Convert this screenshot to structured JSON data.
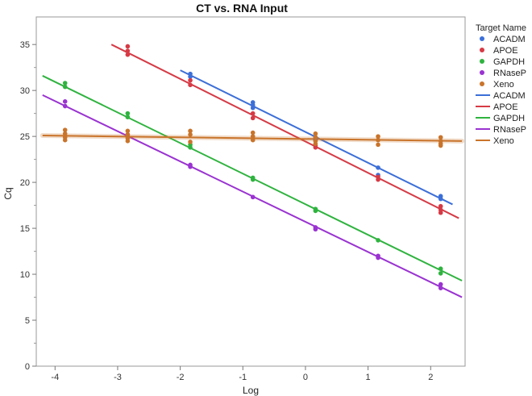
{
  "chart_data": {
    "type": "scatter",
    "title": "CT vs. RNA Input",
    "xlabel": "Log",
    "ylabel": "Cq",
    "xlim": [
      -4.3,
      2.55
    ],
    "ylim": [
      0,
      38
    ],
    "x_ticks": [
      -4,
      -3,
      -2,
      -1,
      0,
      1,
      2
    ],
    "y_ticks": [
      0,
      5,
      10,
      15,
      20,
      25,
      30,
      35
    ],
    "grid": false,
    "legend": {
      "title": "Target Name",
      "placement": "right",
      "marker_entries": [
        "ACADM",
        "APOE",
        "GAPDH",
        "RNaseP",
        "Xeno"
      ],
      "line_entries": [
        "ACADM",
        "APOE",
        "GAPDH",
        "RNaseP",
        "Xeno"
      ]
    },
    "series": [
      {
        "name": "ACADM",
        "color": "#3c6fd8",
        "points": [
          [
            -1.84,
            31.8
          ],
          [
            -1.84,
            31.5
          ],
          [
            -0.84,
            28.7
          ],
          [
            -0.84,
            28.4
          ],
          [
            -0.84,
            28.1
          ],
          [
            0.16,
            24.9
          ],
          [
            0.16,
            24.6
          ],
          [
            1.16,
            21.6
          ],
          [
            1.16,
            20.8
          ],
          [
            2.16,
            18.5
          ],
          [
            2.16,
            18.2
          ]
        ],
        "fit": {
          "x_start": -2.0,
          "y_start": 32.2,
          "x_end": 2.35,
          "y_end": 17.6
        }
      },
      {
        "name": "APOE",
        "color": "#d63a45",
        "points": [
          [
            -2.84,
            34.8
          ],
          [
            -2.84,
            34.3
          ],
          [
            -2.84,
            33.9
          ],
          [
            -1.84,
            31.1
          ],
          [
            -1.84,
            30.6
          ],
          [
            -0.84,
            27.5
          ],
          [
            -0.84,
            27.0
          ],
          [
            0.16,
            24.0
          ],
          [
            0.16,
            23.8
          ],
          [
            1.16,
            20.6
          ],
          [
            1.16,
            20.3
          ],
          [
            2.16,
            17.4
          ],
          [
            2.16,
            17.0
          ],
          [
            2.16,
            16.7
          ]
        ],
        "fit": {
          "x_start": -3.1,
          "y_start": 35.0,
          "x_end": 2.45,
          "y_end": 16.1
        }
      },
      {
        "name": "GAPDH",
        "color": "#2fb33f",
        "points": [
          [
            -3.84,
            30.8
          ],
          [
            -3.84,
            30.4
          ],
          [
            -2.84,
            27.5
          ],
          [
            -2.84,
            27.1
          ],
          [
            -1.84,
            24.1
          ],
          [
            -1.84,
            23.8
          ],
          [
            -0.84,
            20.5
          ],
          [
            -0.84,
            20.3
          ],
          [
            0.16,
            17.1
          ],
          [
            0.16,
            16.9
          ],
          [
            1.16,
            13.7
          ],
          [
            2.16,
            10.6
          ],
          [
            2.16,
            10.1
          ]
        ],
        "fit": {
          "x_start": -4.2,
          "y_start": 31.6,
          "x_end": 2.5,
          "y_end": 9.3
        }
      },
      {
        "name": "RNaseP",
        "color": "#9a33d1",
        "points": [
          [
            -3.84,
            28.8
          ],
          [
            -3.84,
            28.3
          ],
          [
            -2.84,
            25.2
          ],
          [
            -1.84,
            21.9
          ],
          [
            -1.84,
            21.7
          ],
          [
            -0.84,
            18.4
          ],
          [
            0.16,
            15.1
          ],
          [
            0.16,
            14.9
          ],
          [
            1.16,
            12.0
          ],
          [
            1.16,
            11.8
          ],
          [
            2.16,
            8.9
          ],
          [
            2.16,
            8.5
          ]
        ],
        "fit": {
          "x_start": -4.2,
          "y_start": 29.5,
          "x_end": 2.5,
          "y_end": 7.5
        }
      },
      {
        "name": "Xeno",
        "color": "#c9742b",
        "points": [
          [
            -3.84,
            25.7
          ],
          [
            -3.84,
            25.3
          ],
          [
            -3.84,
            24.9
          ],
          [
            -3.84,
            24.6
          ],
          [
            -2.84,
            25.6
          ],
          [
            -2.84,
            25.2
          ],
          [
            -2.84,
            24.8
          ],
          [
            -2.84,
            24.5
          ],
          [
            -1.84,
            25.6
          ],
          [
            -1.84,
            25.2
          ],
          [
            -1.84,
            24.4
          ],
          [
            -0.84,
            25.4
          ],
          [
            -0.84,
            25.0
          ],
          [
            -0.84,
            24.6
          ],
          [
            0.16,
            25.3
          ],
          [
            0.16,
            24.9
          ],
          [
            0.16,
            24.5
          ],
          [
            0.16,
            24.2
          ],
          [
            1.16,
            25.0
          ],
          [
            1.16,
            24.6
          ],
          [
            1.16,
            24.1
          ],
          [
            2.16,
            24.9
          ],
          [
            2.16,
            24.5
          ],
          [
            2.16,
            24.2
          ],
          [
            2.16,
            24.0
          ]
        ],
        "fit": {
          "x_start": -4.2,
          "y_start": 25.1,
          "x_end": 2.5,
          "y_end": 24.5
        }
      }
    ]
  }
}
